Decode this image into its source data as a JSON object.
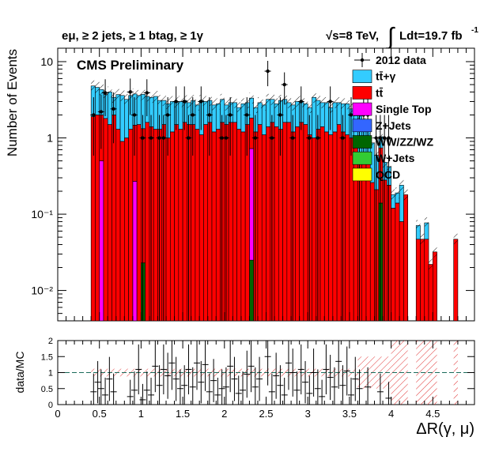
{
  "header": {
    "selection": "eμ, ≥ 2 jets, ≥ 1 btag, ≥ 1γ",
    "energy": "√s=8 TeV,",
    "integral": "∫",
    "lumi": "Ldt=19.7 fb",
    "lumi_exp": "-1"
  },
  "chart_data": [
    {
      "type": "bar",
      "stacked": true,
      "title": "CMS Preliminary",
      "xlabel": "",
      "ylabel": "Number of Events",
      "log_y": true,
      "xlim": [
        0,
        5
      ],
      "ylim": [
        0.004,
        15
      ],
      "y_ticks": [
        "10⁻²",
        "10⁻¹",
        "1",
        "10"
      ],
      "legend_position": "top-right",
      "bin_edges": [
        0.4,
        0.45,
        0.5,
        0.55,
        0.6,
        0.65,
        0.7,
        0.75,
        0.8,
        0.85,
        0.9,
        0.95,
        1.0,
        1.05,
        1.1,
        1.15,
        1.2,
        1.25,
        1.3,
        1.35,
        1.4,
        1.45,
        1.5,
        1.55,
        1.6,
        1.65,
        1.7,
        1.75,
        1.8,
        1.85,
        1.9,
        1.95,
        2.0,
        2.05,
        2.1,
        2.15,
        2.2,
        2.25,
        2.3,
        2.35,
        2.4,
        2.45,
        2.5,
        2.55,
        2.6,
        2.65,
        2.7,
        2.75,
        2.8,
        2.85,
        2.9,
        2.95,
        3.0,
        3.05,
        3.1,
        3.15,
        3.2,
        3.25,
        3.3,
        3.35,
        3.4,
        3.45,
        3.5,
        3.55,
        3.6,
        3.65,
        3.7,
        3.75,
        3.8,
        3.85,
        3.9,
        3.95,
        4.0,
        4.05,
        4.1,
        4.15,
        4.2,
        4.25,
        4.3,
        4.35,
        4.4,
        4.45,
        4.5,
        4.55,
        4.6,
        4.65,
        4.7,
        4.75,
        4.8
      ],
      "series": [
        {
          "name": "tt̄+γ",
          "color": "#33ccff",
          "values": [
            2.9,
            2.6,
            2.3,
            1.9,
            2.5,
            1.4,
            2.4,
            2.7,
            2.2,
            2.3,
            2.3,
            2.1,
            2.4,
            1.9,
            2.0,
            2.2,
            1.8,
            1.6,
            1.8,
            1.8,
            1.4,
            1.7,
            1.5,
            1.4,
            1.6,
            1.4,
            2.0,
            1.5,
            1.5,
            1.5,
            1.5,
            1.6,
            1.2,
            1.3,
            1.3,
            1.2,
            1.6,
            1.4,
            1.5,
            1.3,
            1.4,
            1.6,
            1.8,
            1.6,
            1.4,
            1.8,
            1.6,
            1.3,
            1.5,
            1.6,
            1.4,
            1.3,
            1.4,
            2.4,
            1.8,
            1.5,
            1.7,
            1.4,
            1.7,
            1.4,
            1.6,
            1.7,
            1.4,
            1.2,
            1.3,
            1.0,
            0.8,
            0.6,
            0.38,
            0.3,
            0.2,
            0.18,
            0.06,
            0.05,
            0.16,
            0,
            0,
            0,
            0.024,
            0,
            0.03,
            0,
            0,
            0,
            0,
            0,
            0,
            0
          ]
        },
        {
          "name": "tt̄",
          "color": "#ff0000",
          "values": [
            1.9,
            2.0,
            1.5,
            1.8,
            1.5,
            2.0,
            1.3,
            0.9,
            1.0,
            1.3,
            1.2,
            1.5,
            1.3,
            1.6,
            1.4,
            1.3,
            1.3,
            1.5,
            1.0,
            1.2,
            1.5,
            1.3,
            1.6,
            1.5,
            1.5,
            1.3,
            1.1,
            1.5,
            1.6,
            1.2,
            1.3,
            1.6,
            1.5,
            1.6,
            1.6,
            1.3,
            1.2,
            1.5,
            1.1,
            1.2,
            1.5,
            1.1,
            1.4,
            1.6,
            1.4,
            1.3,
            1.6,
            1.6,
            1.2,
            1.4,
            1.6,
            1.5,
            1.1,
            1.0,
            1.3,
            1.4,
            1.2,
            1.1,
            1.2,
            1.5,
            1.2,
            1.1,
            1.0,
            0.75,
            0.65,
            0.55,
            0.5,
            0.26,
            0.21,
            0.6,
            0.28,
            0.24,
            0.12,
            0.14,
            0.08,
            0.18,
            0,
            0,
            0.047,
            0.047,
            0.047,
            0.022,
            0.032,
            0,
            0,
            0,
            0,
            0.047
          ]
        },
        {
          "name": "Single Top",
          "color": "#ff00ff",
          "values": [
            0,
            0,
            0.5,
            0,
            0,
            0,
            0,
            0,
            0,
            0,
            0.27,
            0,
            0,
            0,
            0,
            0,
            0,
            0,
            0,
            0,
            0,
            0,
            0,
            0,
            0,
            0,
            0,
            0,
            0,
            0,
            0,
            0,
            0,
            0,
            0,
            0,
            0,
            0,
            0.7,
            0,
            0,
            0,
            0,
            0,
            0,
            0,
            0,
            0,
            0,
            0,
            0,
            0,
            0,
            0,
            0,
            0,
            0,
            0,
            0,
            0,
            0,
            0,
            0,
            0,
            0,
            0,
            0,
            0,
            0,
            0,
            0,
            0,
            0,
            0,
            0,
            0,
            0,
            0,
            0,
            0,
            0,
            0,
            0,
            0,
            0,
            0,
            0,
            0
          ]
        },
        {
          "name": "Z+Jets",
          "color": "#3366ff",
          "values": []
        },
        {
          "name": "WW/ZZ/WZ",
          "color": "#006600",
          "values": [
            0,
            0,
            0,
            0,
            0,
            0,
            0,
            0,
            0,
            0,
            0,
            0,
            0.023,
            0,
            0,
            0,
            0,
            0,
            0,
            0,
            0,
            0,
            0,
            0,
            0,
            0,
            0,
            0,
            0,
            0,
            0,
            0,
            0,
            0,
            0,
            0,
            0,
            0,
            0.025,
            0,
            0,
            0,
            0,
            0,
            0,
            0,
            0,
            0,
            0,
            0,
            0,
            0,
            0,
            0,
            0,
            0,
            0,
            0,
            0,
            0,
            0,
            0,
            0,
            0,
            0,
            0,
            0,
            0,
            0,
            0.14,
            0,
            0,
            0,
            0,
            0,
            0,
            0,
            0,
            0,
            0,
            0,
            0,
            0,
            0,
            0,
            0,
            0,
            0
          ]
        },
        {
          "name": "W+Jets",
          "color": "#33cc33",
          "values": []
        },
        {
          "name": "QCD",
          "color": "#ffff00",
          "values": []
        }
      ],
      "data": {
        "name": "2012 data",
        "x": [
          0.43,
          0.52,
          0.57,
          0.67,
          0.87,
          0.92,
          1.02,
          1.07,
          1.12,
          1.22,
          1.27,
          1.32,
          1.42,
          1.52,
          1.57,
          1.62,
          1.72,
          1.82,
          1.97,
          2.02,
          2.07,
          2.27,
          2.37,
          2.52,
          2.57,
          2.67,
          2.72,
          2.82,
          2.92,
          3.02,
          3.12,
          3.27,
          3.42,
          3.52,
          3.62,
          3.67,
          3.72,
          3.82,
          3.87,
          3.92,
          3.97
        ],
        "y": [
          2.0,
          2.2,
          3.9,
          2.4,
          4.0,
          2.0,
          1.0,
          3.9,
          1.0,
          1.0,
          1.0,
          2.0,
          3.0,
          3.0,
          1.0,
          2.0,
          3.0,
          2.0,
          1.0,
          1.0,
          2.0,
          2.0,
          1.0,
          7.5,
          1.0,
          2.0,
          5.0,
          1.0,
          3.0,
          1.0,
          1.0,
          3.0,
          1.0,
          2.0,
          1.0,
          2.0,
          2.0,
          1.0,
          1.0,
          1.0,
          1.0
        ]
      }
    },
    {
      "type": "scatter",
      "title": "",
      "xlabel": "ΔR(γ, μ)",
      "ylabel": "data/MC",
      "xlim": [
        0,
        5
      ],
      "ylim": [
        0,
        2
      ],
      "x_ticks": [
        "0",
        "0.5",
        "1",
        "1.5",
        "2",
        "2.5",
        "3",
        "3.5",
        "4",
        "4.5"
      ],
      "y_ticks": [
        "0",
        "0.5",
        "1",
        "1.5",
        "2"
      ],
      "reference_line": 1,
      "series": [
        {
          "name": "",
          "x": [
            0.43,
            0.48,
            0.52,
            0.57,
            0.62,
            0.67,
            0.87,
            0.92,
            0.97,
            1.02,
            1.07,
            1.12,
            1.17,
            1.22,
            1.27,
            1.32,
            1.37,
            1.42,
            1.47,
            1.52,
            1.57,
            1.62,
            1.67,
            1.72,
            1.77,
            1.82,
            1.87,
            1.92,
            1.97,
            2.02,
            2.07,
            2.12,
            2.17,
            2.22,
            2.27,
            2.32,
            2.37,
            2.42,
            2.52,
            2.57,
            2.62,
            2.67,
            2.72,
            2.77,
            2.82,
            2.87,
            2.92,
            2.97,
            3.02,
            3.07,
            3.12,
            3.17,
            3.22,
            3.27,
            3.32,
            3.37,
            3.42,
            3.47,
            3.52,
            3.57,
            3.62,
            3.72,
            3.87,
            3.97
          ],
          "y": [
            0.4,
            0.7,
            0.5,
            0.3,
            0.8,
            0.4,
            0.25,
            0.45,
            1.1,
            0.15,
            0.45,
            0.3,
            1.2,
            0.6,
            1.1,
            0.9,
            1.3,
            0.8,
            0.5,
            0.6,
            1.1,
            0.55,
            1.3,
            0.7,
            1.25,
            0.4,
            0.75,
            0.3,
            0.5,
            0.55,
            1.2,
            0.8,
            0.35,
            0.45,
            0.95,
            1.2,
            0.55,
            0.8,
            1.5,
            0.4,
            0.9,
            0.6,
            0.3,
            1.3,
            1.0,
            0.45,
            1.1,
            0.7,
            0.35,
            1.0,
            0.5,
            0.25,
            1.1,
            0.85,
            0.55,
            1.35,
            0.6,
            1.05,
            0.3,
            0.8,
            0.5,
            0.55,
            0.4,
            0.2
          ]
        }
      ]
    }
  ]
}
